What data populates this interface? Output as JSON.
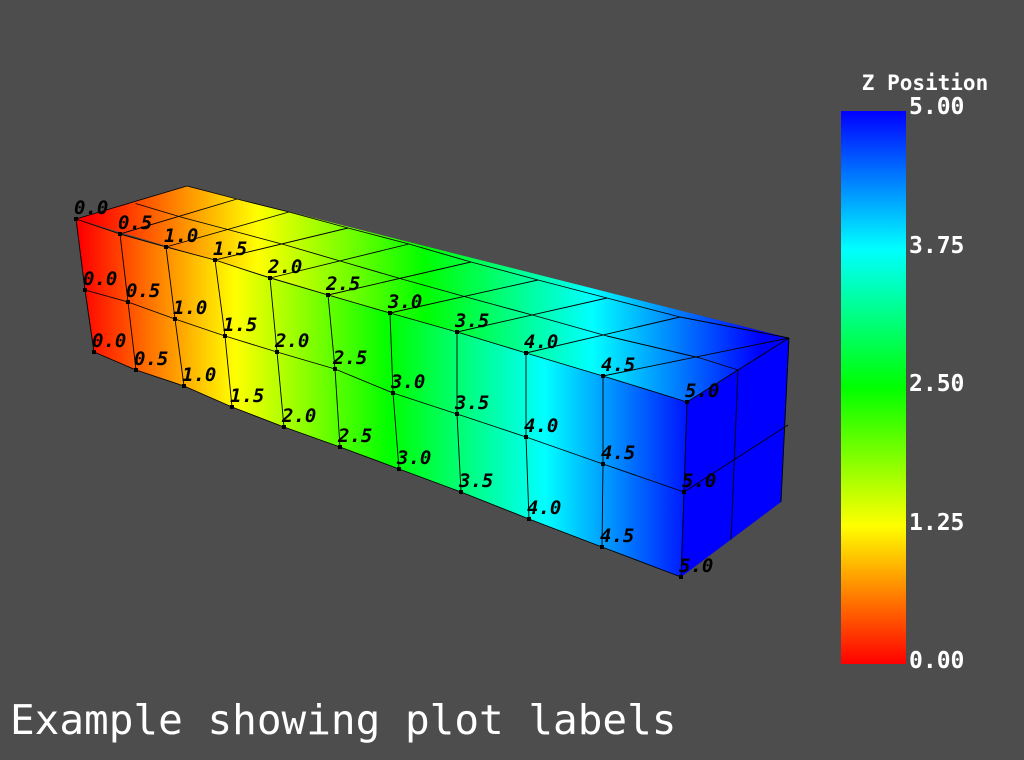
{
  "title": "Example showing plot labels",
  "scalar_bar": {
    "title": "Z Position",
    "ticks": [
      "5.00",
      "3.75",
      "2.50",
      "1.25",
      "0.00"
    ],
    "range": [
      0,
      5
    ],
    "colormap": [
      "#ff0000",
      "#ffff00",
      "#00ff00",
      "#00ffff",
      "#0000ff"
    ]
  },
  "points": {
    "rows": [
      "top",
      "middle",
      "bottom"
    ],
    "values": [
      "0.0",
      "0.5",
      "1.0",
      "1.5",
      "2.0",
      "2.5",
      "3.0",
      "3.5",
      "4.0",
      "4.5",
      "5.0"
    ]
  },
  "colors": {
    "background": "#4d4d4d",
    "label_text": "#000000",
    "overlay_text": "#ffffff"
  }
}
